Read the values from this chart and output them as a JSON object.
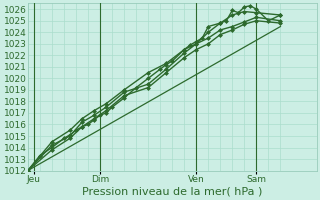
{
  "bg_color": "#cceee4",
  "grid_color": "#aaddcc",
  "line_color": "#2d6a2d",
  "xlabel": "Pression niveau de la mer( hPa )",
  "ylim": [
    1012,
    1026.5
  ],
  "yticks": [
    1012,
    1013,
    1014,
    1015,
    1016,
    1017,
    1018,
    1019,
    1020,
    1021,
    1022,
    1023,
    1024,
    1025,
    1026
  ],
  "xlim": [
    0,
    24
  ],
  "xtick_labels": [
    "Jeu",
    "Dim",
    "Ven",
    "Sam"
  ],
  "xtick_positions": [
    0.5,
    6,
    14,
    19
  ],
  "vline_positions": [
    0.5,
    6,
    14,
    19
  ],
  "series": [
    {
      "x": [
        0,
        1,
        2,
        3,
        3.5,
        4,
        4.5,
        5,
        5.5,
        6,
        6.5,
        7,
        8,
        9,
        10,
        11,
        11.5,
        12,
        13,
        13.5,
        14,
        14.5,
        15,
        16,
        16.5,
        17,
        17.5,
        18,
        18.5,
        19,
        20,
        21
      ],
      "y": [
        1012.0,
        1013.3,
        1014.0,
        1014.8,
        1015.1,
        1015.5,
        1015.8,
        1016.0,
        1016.4,
        1016.8,
        1017.0,
        1017.5,
        1018.3,
        1019.2,
        1020.0,
        1020.8,
        1021.2,
        1021.5,
        1022.5,
        1022.9,
        1023.2,
        1023.5,
        1024.5,
        1024.8,
        1025.0,
        1025.9,
        1025.7,
        1026.2,
        1026.3,
        1026.0,
        1025.0,
        1025.5
      ],
      "marker": "D",
      "markersize": 2.0,
      "linewidth": 1.0
    },
    {
      "x": [
        0,
        2,
        3.5,
        4.5,
        5.5,
        6.5,
        8,
        10,
        11.5,
        13,
        14,
        15,
        16,
        17,
        18,
        19,
        21
      ],
      "y": [
        1012.0,
        1014.5,
        1015.5,
        1016.5,
        1017.2,
        1017.8,
        1019.0,
        1020.5,
        1021.3,
        1022.5,
        1023.0,
        1024.0,
        1024.8,
        1025.5,
        1025.8,
        1025.7,
        1025.5
      ],
      "marker": "D",
      "markersize": 2.0,
      "linewidth": 1.0
    },
    {
      "x": [
        0,
        2,
        3.5,
        4.5,
        5.5,
        6.5,
        8,
        10,
        11.5,
        13,
        14,
        15,
        16,
        17,
        18,
        19,
        21
      ],
      "y": [
        1012.0,
        1014.2,
        1015.0,
        1016.2,
        1016.8,
        1017.5,
        1018.8,
        1019.5,
        1020.8,
        1022.2,
        1023.0,
        1023.5,
        1024.2,
        1024.5,
        1024.9,
        1025.3,
        1025.0
      ],
      "marker": "D",
      "markersize": 2.0,
      "linewidth": 1.0
    },
    {
      "x": [
        0,
        2,
        3.5,
        4.5,
        5.5,
        6.5,
        8,
        10,
        11.5,
        13,
        14,
        15,
        16,
        17,
        18,
        19,
        21
      ],
      "y": [
        1012.0,
        1013.8,
        1014.8,
        1015.8,
        1016.5,
        1017.2,
        1018.5,
        1019.2,
        1020.5,
        1021.8,
        1022.5,
        1023.0,
        1023.8,
        1024.2,
        1024.7,
        1025.0,
        1024.8
      ],
      "marker": "D",
      "markersize": 2.0,
      "linewidth": 1.0
    },
    {
      "x": [
        0,
        21
      ],
      "y": [
        1012.0,
        1024.5
      ],
      "marker": null,
      "markersize": 0,
      "linewidth": 0.9
    }
  ],
  "fontsize": 6.5,
  "label_fontsize": 8.0
}
